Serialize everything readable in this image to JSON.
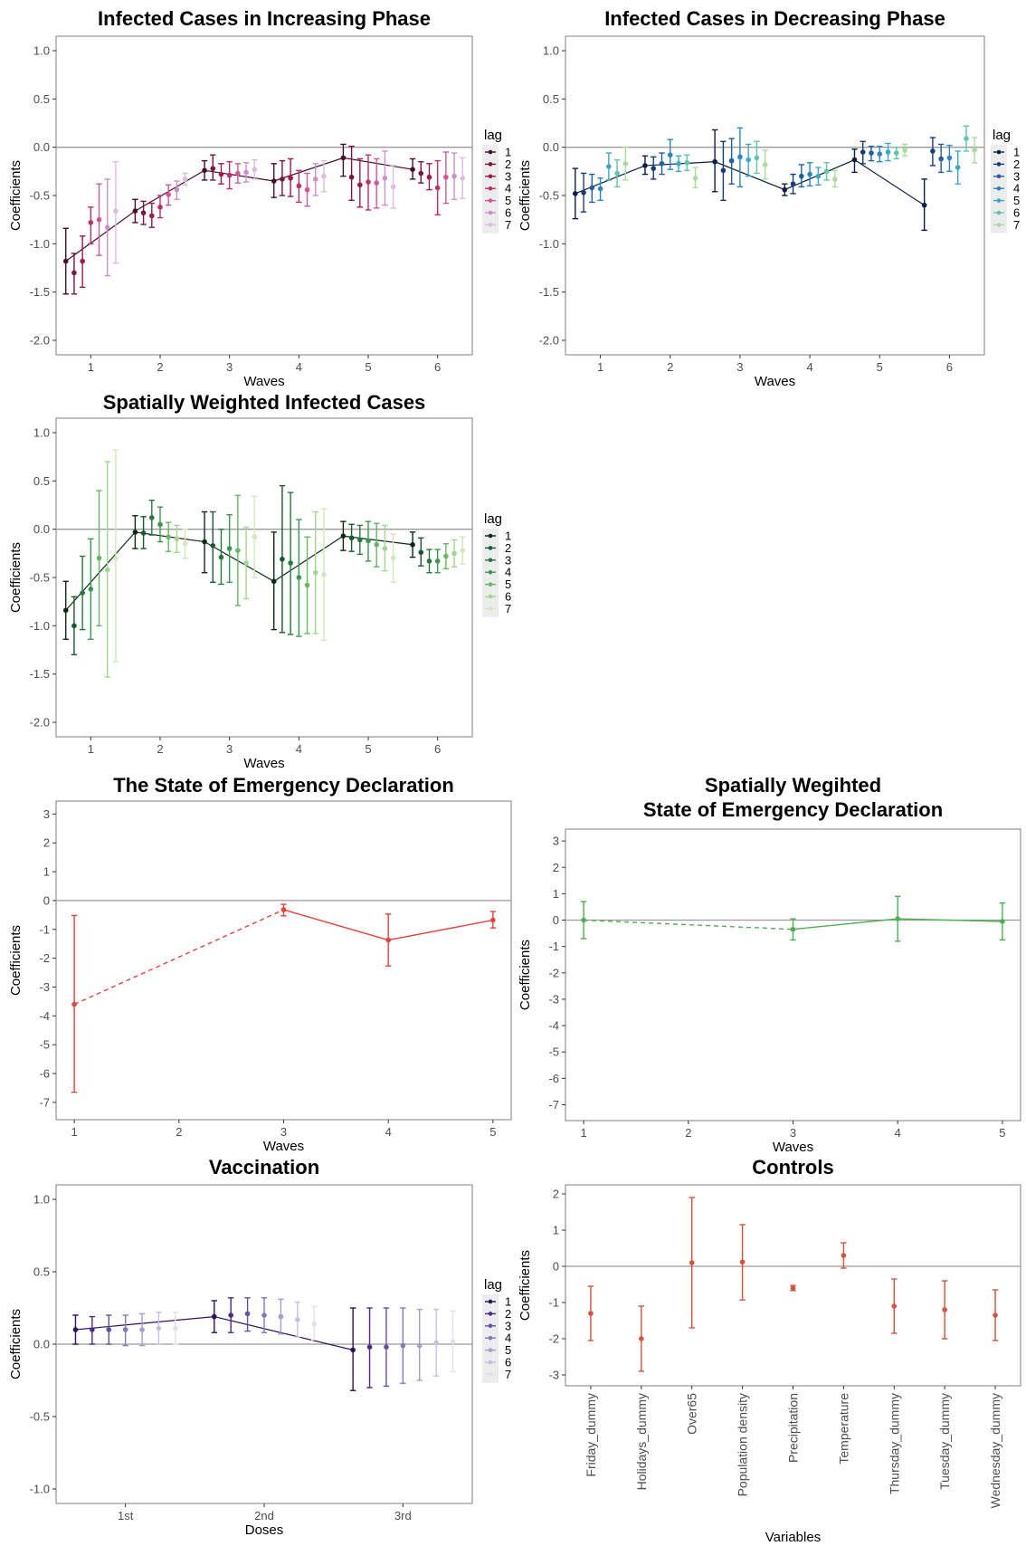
{
  "chart_data": [
    {
      "id": "inc",
      "type": "scatter",
      "title": [
        "Infected Cases in Increasing Phase"
      ],
      "xlabel": "Waves",
      "ylabel": "Coefficients",
      "x": [
        "1",
        "2",
        "3",
        "4",
        "5",
        "6"
      ],
      "ylim": [
        -2.15,
        1.15
      ],
      "yticks": [
        1.0,
        0.5,
        0.0,
        -0.5,
        -1.0,
        -1.5,
        -2.0
      ],
      "ytick_labels": [
        "1.0",
        "0.5",
        "0.0",
        "-0.5",
        "-1.0",
        "-1.5",
        "-2.0"
      ],
      "legend_title": "lag",
      "palette": [
        "#4a0b2a",
        "#7a1440",
        "#a3174c",
        "#c42c6b",
        "#d1579a",
        "#c992c8",
        "#dcbde0"
      ],
      "series": [
        {
          "name": "1",
          "values": [
            -1.18,
            -0.66,
            -0.24,
            -0.35,
            -0.11,
            -0.23
          ],
          "lo": [
            -1.52,
            -0.78,
            -0.34,
            -0.52,
            -0.3,
            -0.33
          ],
          "hi": [
            -0.84,
            -0.54,
            -0.14,
            -0.17,
            0.03,
            -0.12
          ]
        },
        {
          "name": "2",
          "values": [
            -1.3,
            -0.68,
            -0.22,
            -0.33,
            -0.31,
            -0.27
          ],
          "lo": [
            -1.52,
            -0.8,
            -0.34,
            -0.5,
            -0.55,
            -0.37
          ],
          "hi": [
            -1.1,
            -0.56,
            -0.08,
            -0.14,
            0.01,
            -0.15
          ]
        },
        {
          "name": "3",
          "values": [
            -1.18,
            -0.71,
            -0.28,
            -0.32,
            -0.39,
            -0.31
          ],
          "lo": [
            -1.45,
            -0.83,
            -0.38,
            -0.51,
            -0.62,
            -0.44
          ],
          "hi": [
            -0.92,
            -0.58,
            -0.17,
            -0.12,
            -0.12,
            -0.17
          ]
        },
        {
          "name": "4",
          "values": [
            -0.78,
            -0.62,
            -0.29,
            -0.4,
            -0.36,
            -0.42
          ],
          "lo": [
            -1.0,
            -0.73,
            -0.43,
            -0.57,
            -0.65,
            -0.7
          ],
          "hi": [
            -0.62,
            -0.5,
            -0.15,
            -0.24,
            -0.08,
            -0.14
          ]
        },
        {
          "name": "5",
          "values": [
            -0.75,
            -0.49,
            -0.27,
            -0.44,
            -0.37,
            -0.31
          ],
          "lo": [
            -1.12,
            -0.6,
            -0.37,
            -0.61,
            -0.63,
            -0.58
          ],
          "hi": [
            -0.38,
            -0.39,
            -0.17,
            -0.27,
            -0.12,
            -0.05
          ]
        },
        {
          "name": "6",
          "values": [
            -0.83,
            -0.44,
            -0.26,
            -0.33,
            -0.32,
            -0.3
          ],
          "lo": [
            -1.33,
            -0.54,
            -0.36,
            -0.5,
            -0.6,
            -0.54
          ],
          "hi": [
            -0.33,
            -0.35,
            -0.16,
            -0.17,
            -0.04,
            -0.06
          ]
        },
        {
          "name": "7",
          "values": [
            -0.66,
            -0.33,
            -0.23,
            -0.3,
            -0.41,
            -0.32
          ],
          "lo": [
            -1.2,
            -0.39,
            -0.33,
            -0.46,
            -0.63,
            -0.53
          ],
          "hi": [
            -0.15,
            -0.27,
            -0.13,
            -0.14,
            -0.19,
            -0.11
          ]
        }
      ]
    },
    {
      "id": "dec",
      "type": "scatter",
      "title": [
        "Infected Cases in Decreasing Phase"
      ],
      "xlabel": "Waves",
      "ylabel": "Coefficients",
      "x": [
        "1",
        "2",
        "3",
        "4",
        "5",
        "6"
      ],
      "ylim": [
        -2.15,
        1.15
      ],
      "yticks": [
        1.0,
        0.5,
        0.0,
        -0.5,
        -1.0,
        -1.5,
        -2.0
      ],
      "ytick_labels": [
        "1.0",
        "0.5",
        "0.0",
        "-0.5",
        "-1.0",
        "-1.5",
        "-2.0"
      ],
      "legend_title": "lag",
      "palette": [
        "#0b1e47",
        "#1a3b7a",
        "#1f5ea8",
        "#2a86c4",
        "#3aa9c7",
        "#62c6a5",
        "#a8dd9a"
      ],
      "series": [
        {
          "name": "1",
          "values": [
            -0.48,
            -0.19,
            -0.15,
            -0.44,
            -0.13,
            -0.6
          ],
          "lo": [
            -0.74,
            -0.28,
            -0.46,
            -0.5,
            -0.26,
            -0.86
          ],
          "hi": [
            -0.22,
            -0.09,
            0.18,
            -0.38,
            -0.02,
            -0.33
          ]
        },
        {
          "name": "2",
          "values": [
            -0.47,
            -0.22,
            -0.24,
            -0.38,
            -0.05,
            -0.04
          ],
          "lo": [
            -0.67,
            -0.33,
            -0.55,
            -0.48,
            -0.17,
            -0.19
          ],
          "hi": [
            -0.27,
            -0.1,
            0.06,
            -0.28,
            0.06,
            0.1
          ]
        },
        {
          "name": "3",
          "values": [
            -0.42,
            -0.17,
            -0.14,
            -0.3,
            -0.06,
            -0.12
          ],
          "lo": [
            -0.57,
            -0.28,
            -0.38,
            -0.41,
            -0.14,
            -0.26
          ],
          "hi": [
            -0.28,
            -0.06,
            0.09,
            -0.18,
            0.01,
            0.03
          ]
        },
        {
          "name": "4",
          "values": [
            -0.43,
            -0.08,
            -0.1,
            -0.28,
            -0.07,
            -0.11
          ],
          "lo": [
            -0.55,
            -0.23,
            -0.41,
            -0.4,
            -0.15,
            -0.25
          ],
          "hi": [
            -0.32,
            0.08,
            0.2,
            -0.16,
            0.01,
            0.02
          ]
        },
        {
          "name": "5",
          "values": [
            -0.2,
            -0.17,
            -0.13,
            -0.3,
            -0.05,
            -0.21
          ],
          "lo": [
            -0.34,
            -0.25,
            -0.3,
            -0.39,
            -0.14,
            -0.38
          ],
          "hi": [
            -0.06,
            -0.09,
            0.03,
            -0.21,
            0.04,
            -0.04
          ]
        },
        {
          "name": "6",
          "values": [
            -0.27,
            -0.16,
            -0.11,
            -0.25,
            -0.06,
            0.09
          ],
          "lo": [
            -0.41,
            -0.24,
            -0.27,
            -0.34,
            -0.12,
            -0.04
          ],
          "hi": [
            -0.13,
            -0.08,
            0.06,
            -0.16,
            0.0,
            0.22
          ]
        },
        {
          "name": "7",
          "values": [
            -0.17,
            -0.32,
            -0.18,
            -0.33,
            -0.03,
            -0.03
          ],
          "lo": [
            -0.34,
            -0.42,
            -0.33,
            -0.41,
            -0.09,
            -0.16
          ],
          "hi": [
            0.0,
            -0.21,
            -0.03,
            -0.24,
            0.03,
            0.1
          ]
        }
      ]
    },
    {
      "id": "spw",
      "type": "scatter",
      "title": [
        "Spatially Weighted Infected Cases"
      ],
      "xlabel": "Waves",
      "ylabel": "Coefficients",
      "x": [
        "1",
        "2",
        "3",
        "4",
        "5",
        "6"
      ],
      "ylim": [
        -2.15,
        1.15
      ],
      "yticks": [
        1.0,
        0.5,
        0.0,
        -0.5,
        -1.0,
        -1.5,
        -2.0
      ],
      "ytick_labels": [
        "1.0",
        "0.5",
        "0.0",
        "-0.5",
        "-1.0",
        "-1.5",
        "-2.0"
      ],
      "legend_title": "lag",
      "palette": [
        "#0d2a17",
        "#195a2d",
        "#237a3b",
        "#3a9a4c",
        "#66b861",
        "#a2d78e",
        "#cfeab8"
      ],
      "series": [
        {
          "name": "1",
          "values": [
            -0.84,
            -0.03,
            -0.13,
            -0.54,
            -0.07,
            -0.16
          ],
          "lo": [
            -1.14,
            -0.2,
            -0.45,
            -1.04,
            -0.22,
            -0.29
          ],
          "hi": [
            -0.54,
            0.14,
            0.18,
            -0.03,
            0.08,
            -0.03
          ]
        },
        {
          "name": "2",
          "values": [
            -1.0,
            -0.04,
            -0.17,
            -0.31,
            -0.09,
            -0.24
          ],
          "lo": [
            -1.3,
            -0.2,
            -0.55,
            -1.07,
            -0.23,
            -0.38
          ],
          "hi": [
            -0.7,
            0.13,
            0.18,
            0.45,
            0.05,
            -0.09
          ]
        },
        {
          "name": "3",
          "values": [
            -0.66,
            0.12,
            -0.29,
            -0.35,
            -0.11,
            -0.33
          ],
          "lo": [
            -1.04,
            -0.06,
            -0.57,
            -1.09,
            -0.26,
            -0.45
          ],
          "hi": [
            -0.28,
            0.3,
            0.0,
            0.38,
            0.04,
            -0.21
          ]
        },
        {
          "name": "4",
          "values": [
            -0.62,
            0.05,
            -0.2,
            -0.5,
            -0.12,
            -0.33
          ],
          "lo": [
            -1.14,
            -0.13,
            -0.55,
            -1.11,
            -0.33,
            -0.45
          ],
          "hi": [
            -0.1,
            0.23,
            0.15,
            0.1,
            0.08,
            -0.21
          ]
        },
        {
          "name": "5",
          "values": [
            -0.3,
            -0.08,
            -0.22,
            -0.58,
            -0.16,
            -0.28
          ],
          "lo": [
            -1.0,
            -0.23,
            -0.79,
            -1.08,
            -0.39,
            -0.41
          ],
          "hi": [
            0.4,
            0.07,
            0.35,
            -0.08,
            0.06,
            -0.15
          ]
        },
        {
          "name": "6",
          "values": [
            -0.42,
            -0.1,
            -0.35,
            -0.45,
            -0.2,
            -0.25
          ],
          "lo": [
            -1.53,
            -0.24,
            -0.72,
            -1.08,
            -0.43,
            -0.39
          ],
          "hi": [
            0.7,
            0.04,
            0.02,
            0.18,
            0.04,
            -0.11
          ]
        },
        {
          "name": "7",
          "values": [
            -0.3,
            -0.15,
            -0.08,
            -0.47,
            -0.3,
            -0.22
          ],
          "lo": [
            -1.37,
            -0.3,
            -0.5,
            -1.15,
            -0.55,
            -0.36
          ],
          "hi": [
            0.82,
            0.0,
            0.34,
            0.21,
            -0.05,
            -0.08
          ]
        }
      ]
    },
    {
      "id": "soe",
      "type": "line",
      "title": [
        "The State of Emergency Declaration"
      ],
      "xlabel": "Waves",
      "ylabel": "Coefficients",
      "x": [
        "1",
        "2",
        "3",
        "4",
        "5"
      ],
      "ylim": [
        -7.6,
        3.45
      ],
      "yticks": [
        3,
        2,
        1,
        0,
        -1,
        -2,
        -3,
        -4,
        -5,
        -6,
        -7
      ],
      "ytick_labels": [
        "3",
        "2",
        "1",
        "0",
        "-1",
        "-2",
        "-3",
        "-4",
        "-5",
        "-6",
        "-7"
      ],
      "color": "#e8413a",
      "points": [
        {
          "x": "1",
          "y": -3.6,
          "lo": -6.65,
          "hi": -0.52
        },
        {
          "x": "3",
          "y": -0.32,
          "lo": -0.53,
          "hi": -0.13
        },
        {
          "x": "4",
          "y": -1.37,
          "lo": -2.27,
          "hi": -0.47
        },
        {
          "x": "5",
          "y": -0.68,
          "lo": -0.95,
          "hi": -0.38
        }
      ],
      "dashed_segments": [
        [
          0,
          1
        ]
      ]
    },
    {
      "id": "sw_soe",
      "type": "line",
      "title": [
        "Spatially Wegihted",
        "State of Emergency Declaration"
      ],
      "xlabel": "Waves",
      "ylabel": "Coefficients",
      "x": [
        "1",
        "2",
        "3",
        "4",
        "5"
      ],
      "ylim": [
        -7.6,
        3.45
      ],
      "yticks": [
        3,
        2,
        1,
        0,
        -1,
        -2,
        -3,
        -4,
        -5,
        -6,
        -7
      ],
      "ytick_labels": [
        "3",
        "2",
        "1",
        "0",
        "-1",
        "-2",
        "-3",
        "-4",
        "-5",
        "-6",
        "-7"
      ],
      "color": "#4caf50",
      "points": [
        {
          "x": "1",
          "y": 0.0,
          "lo": -0.7,
          "hi": 0.7
        },
        {
          "x": "3",
          "y": -0.35,
          "lo": -0.75,
          "hi": 0.05
        },
        {
          "x": "4",
          "y": 0.05,
          "lo": -0.8,
          "hi": 0.9
        },
        {
          "x": "5",
          "y": -0.05,
          "lo": -0.75,
          "hi": 0.65
        }
      ],
      "dashed_segments": [
        [
          0,
          1
        ]
      ]
    },
    {
      "id": "vac",
      "type": "scatter",
      "title": [
        "Vaccination"
      ],
      "xlabel": "Doses",
      "ylabel": "Coefficients",
      "x": [
        "1st",
        "2nd",
        "3rd"
      ],
      "ylim": [
        -1.1,
        1.1
      ],
      "yticks": [
        1.0,
        0.5,
        0.0,
        -0.5,
        -1.0
      ],
      "ytick_labels": [
        "1.0",
        "0.5",
        "0.0",
        "-0.5",
        "-1.0"
      ],
      "legend_title": "lag",
      "palette": [
        "#2c115f",
        "#4a2b8a",
        "#6650a6",
        "#8577be",
        "#a69ccf",
        "#c6c1e0",
        "#e3e0ef"
      ],
      "series": [
        {
          "name": "1",
          "values": [
            0.1,
            0.19,
            -0.04
          ],
          "lo": [
            0.0,
            0.08,
            -0.32
          ],
          "hi": [
            0.2,
            0.3,
            0.25
          ]
        },
        {
          "name": "2",
          "values": [
            0.1,
            0.2,
            -0.02
          ],
          "lo": [
            0.0,
            0.08,
            -0.3
          ],
          "hi": [
            0.19,
            0.32,
            0.25
          ]
        },
        {
          "name": "3",
          "values": [
            0.1,
            0.21,
            -0.02
          ],
          "lo": [
            0.0,
            0.09,
            -0.29
          ],
          "hi": [
            0.2,
            0.32,
            0.25
          ]
        },
        {
          "name": "4",
          "values": [
            0.1,
            0.2,
            -0.01
          ],
          "lo": [
            -0.01,
            0.08,
            -0.27
          ],
          "hi": [
            0.2,
            0.32,
            0.25
          ]
        },
        {
          "name": "5",
          "values": [
            0.1,
            0.19,
            -0.01
          ],
          "lo": [
            -0.01,
            0.07,
            -0.25
          ],
          "hi": [
            0.21,
            0.31,
            0.24
          ]
        },
        {
          "name": "6",
          "values": [
            0.11,
            0.17,
            0.01
          ],
          "lo": [
            0.0,
            0.05,
            -0.22
          ],
          "hi": [
            0.22,
            0.29,
            0.24
          ]
        },
        {
          "name": "7",
          "values": [
            0.11,
            0.14,
            0.02
          ],
          "lo": [
            0.0,
            0.03,
            -0.19
          ],
          "hi": [
            0.22,
            0.26,
            0.23
          ]
        }
      ]
    },
    {
      "id": "ctrl",
      "type": "scatter",
      "title": [
        "Controls"
      ],
      "xlabel": "Variables",
      "ylabel": "Coefficients",
      "categories": [
        "Friday_dummy",
        "Holidays_dummy",
        "Over65",
        "Population density",
        "Precipitation",
        "Temperature",
        "Thursday_dummy",
        "Tuesday_dummy",
        "Wednesday_dummy"
      ],
      "ylim": [
        -3.3,
        2.25
      ],
      "yticks": [
        2,
        1,
        0,
        -1,
        -2,
        -3
      ],
      "ytick_labels": [
        "2",
        "1",
        "0",
        "-1",
        "-2",
        "-3"
      ],
      "color": "#d9513a",
      "values": [
        -1.3,
        -2.0,
        0.1,
        0.12,
        -0.6,
        0.3,
        -1.1,
        -1.2,
        -1.35
      ],
      "lo": [
        -2.05,
        -2.9,
        -1.7,
        -0.93,
        -0.67,
        -0.05,
        -1.85,
        -2.0,
        -2.05
      ],
      "hi": [
        -0.55,
        -1.1,
        1.9,
        1.15,
        -0.53,
        0.65,
        -0.35,
        -0.4,
        -0.65
      ]
    }
  ]
}
